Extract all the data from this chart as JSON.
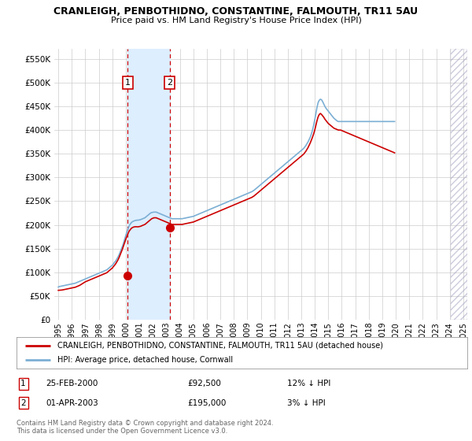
{
  "title": "CRANLEIGH, PENBOTHIDNO, CONSTANTINE, FALMOUTH, TR11 5AU",
  "subtitle": "Price paid vs. HM Land Registry's House Price Index (HPI)",
  "ylabel_ticks": [
    0,
    50000,
    100000,
    150000,
    200000,
    250000,
    300000,
    350000,
    400000,
    450000,
    500000,
    550000
  ],
  "ylim": [
    0,
    572000
  ],
  "xlim_start": 1994.7,
  "xlim_end": 2025.3,
  "transaction1": {
    "date_num": 2000.14,
    "price": 92500,
    "label": "1"
  },
  "transaction2": {
    "date_num": 2003.25,
    "price": 195000,
    "label": "2"
  },
  "legend_line1": "CRANLEIGH, PENBOTHIDNO, CONSTANTINE, FALMOUTH, TR11 5AU (detached house)",
  "legend_line2": "HPI: Average price, detached house, Cornwall",
  "footer1": "Contains HM Land Registry data © Crown copyright and database right 2024.",
  "footer2": "This data is licensed under the Open Government Licence v3.0.",
  "red_color": "#cc0000",
  "blue_color": "#7bafd4",
  "shade_color": "#ddeeff",
  "grid_color": "#cccccc",
  "background_color": "#ffffff",
  "hatch_start": 2024.08,
  "hatch_end": 2025.3,
  "xtick_years": [
    1995,
    1996,
    1997,
    1998,
    1999,
    2000,
    2001,
    2002,
    2003,
    2004,
    2005,
    2006,
    2007,
    2008,
    2009,
    2010,
    2011,
    2012,
    2013,
    2014,
    2015,
    2016,
    2017,
    2018,
    2019,
    2020,
    2021,
    2022,
    2023,
    2024,
    2025
  ],
  "hpi_values_monthly": [
    69000,
    70000,
    70500,
    71000,
    71500,
    72000,
    72500,
    73000,
    73500,
    74000,
    74500,
    75000,
    75500,
    76000,
    76500,
    77000,
    78000,
    79000,
    80000,
    81000,
    82000,
    83000,
    84000,
    85000,
    86000,
    87000,
    88000,
    89000,
    90000,
    91000,
    92000,
    93000,
    94000,
    95000,
    96000,
    97000,
    98000,
    99000,
    100000,
    101000,
    102000,
    103000,
    104000,
    105000,
    107000,
    109000,
    111000,
    113000,
    115000,
    118000,
    121000,
    124000,
    128000,
    132000,
    137000,
    143000,
    149000,
    155000,
    162000,
    170000,
    178000,
    185000,
    192000,
    198000,
    202000,
    205000,
    207000,
    208000,
    209000,
    209500,
    210000,
    210000,
    210500,
    211000,
    212000,
    213000,
    214000,
    215000,
    217000,
    219000,
    221000,
    223000,
    225000,
    226000,
    226500,
    227000,
    227000,
    227000,
    226000,
    225000,
    224000,
    223000,
    222000,
    221000,
    220000,
    219000,
    218000,
    217000,
    216000,
    215000,
    214000,
    213000,
    213000,
    213000,
    213000,
    213000,
    213000,
    213000,
    213000,
    213000,
    213000,
    213500,
    214000,
    214500,
    215000,
    215500,
    216000,
    216500,
    217000,
    217500,
    218000,
    219000,
    220000,
    221000,
    222000,
    223000,
    224000,
    225000,
    226000,
    227000,
    228000,
    229000,
    230000,
    231000,
    232000,
    233000,
    234000,
    235000,
    236000,
    237000,
    238000,
    239000,
    240000,
    241000,
    242000,
    243000,
    244000,
    245000,
    246000,
    247000,
    248000,
    249000,
    250000,
    251000,
    252000,
    253000,
    254000,
    255000,
    256000,
    257000,
    258000,
    259000,
    260000,
    261000,
    262000,
    263000,
    264000,
    265000,
    266000,
    267000,
    268000,
    269000,
    270000,
    271500,
    273000,
    275000,
    277000,
    279000,
    281000,
    283000,
    285000,
    287000,
    289000,
    291000,
    293000,
    295000,
    297000,
    299000,
    301000,
    303000,
    305000,
    307000,
    309000,
    311000,
    313000,
    315000,
    317000,
    319000,
    321000,
    323000,
    325000,
    327000,
    329000,
    331000,
    333000,
    335000,
    337000,
    339000,
    341000,
    343000,
    345000,
    347000,
    349000,
    351000,
    353000,
    355000,
    357000,
    359000,
    361000,
    364000,
    367000,
    371000,
    375000,
    380000,
    385000,
    392000,
    400000,
    410000,
    422000,
    435000,
    448000,
    458000,
    463000,
    465000,
    464000,
    460000,
    455000,
    450000,
    446000,
    443000,
    440000,
    437000,
    434000,
    431000,
    428000,
    425000,
    423000,
    421000,
    419000,
    418000,
    418000,
    418000,
    418000,
    418000,
    418000,
    418000,
    418000,
    418000,
    418000,
    418000,
    418000,
    418000,
    418000,
    418000,
    418000,
    418000,
    418000,
    418000,
    418000,
    418000,
    418000,
    418000,
    418000,
    418000,
    418000,
    418000,
    418000,
    418000,
    418000,
    418000,
    418000,
    418000,
    418000,
    418000,
    418000,
    418000,
    418000,
    418000,
    418000,
    418000,
    418000,
    418000,
    418000,
    418000,
    418000,
    418000,
    418000,
    418000,
    418000,
    418000
  ],
  "prop_values_monthly": [
    62000,
    62200,
    62400,
    62600,
    63000,
    63500,
    64000,
    64500,
    65000,
    65500,
    66000,
    66500,
    67000,
    67500,
    68000,
    68500,
    69500,
    70500,
    71500,
    72500,
    74000,
    75500,
    77000,
    78500,
    80000,
    81000,
    82000,
    83000,
    84000,
    85000,
    86000,
    87000,
    88000,
    89000,
    90000,
    91000,
    92000,
    93000,
    94000,
    95000,
    96000,
    97000,
    98000,
    99000,
    101000,
    103000,
    105000,
    107000,
    109000,
    112000,
    115000,
    118000,
    122000,
    126000,
    131000,
    137000,
    143000,
    149000,
    156000,
    163000,
    170000,
    176000,
    182000,
    187000,
    190000,
    193000,
    194500,
    195500,
    196000,
    196200,
    196000,
    196000,
    196500,
    197000,
    198000,
    199000,
    200000,
    201000,
    203000,
    205000,
    207000,
    209000,
    211000,
    213000,
    214000,
    215000,
    215000,
    215000,
    214000,
    213000,
    212000,
    211000,
    210000,
    209000,
    208000,
    207000,
    206000,
    205000,
    204000,
    203000,
    202000,
    201000,
    201000,
    201000,
    201000,
    201000,
    201000,
    201000,
    201000,
    201000,
    201000,
    201500,
    202000,
    202500,
    203000,
    203500,
    204000,
    204500,
    205000,
    205500,
    206000,
    207000,
    208000,
    209000,
    210000,
    211000,
    212000,
    213000,
    214000,
    215000,
    216000,
    217000,
    218000,
    219000,
    220000,
    221000,
    222000,
    223000,
    224000,
    225000,
    226000,
    227000,
    228000,
    229000,
    230000,
    231000,
    232000,
    233000,
    234000,
    235000,
    236000,
    237000,
    238000,
    239000,
    240000,
    241000,
    242000,
    243000,
    244000,
    245000,
    246000,
    247000,
    248000,
    249000,
    250000,
    251000,
    252000,
    253000,
    254000,
    255000,
    256000,
    257000,
    258000,
    259500,
    261000,
    263000,
    265000,
    267000,
    269000,
    271000,
    273000,
    275000,
    277000,
    279000,
    281000,
    283000,
    285000,
    287000,
    289000,
    291000,
    293000,
    295000,
    297000,
    299000,
    301000,
    303000,
    305000,
    307000,
    309000,
    311000,
    313000,
    315000,
    317000,
    319000,
    321000,
    323000,
    325000,
    327000,
    329000,
    331000,
    333000,
    335000,
    337000,
    339000,
    341000,
    343000,
    345000,
    347000,
    349000,
    352000,
    355000,
    359000,
    363000,
    368000,
    373000,
    379000,
    385000,
    392000,
    400000,
    410000,
    420000,
    428000,
    433000,
    435000,
    433000,
    430000,
    427000,
    423000,
    420000,
    417000,
    414000,
    412000,
    410000,
    408000,
    406000,
    404000,
    403000,
    402000,
    401000,
    400000,
    400000,
    400000,
    399000,
    398000,
    397000,
    396000,
    395000,
    394000,
    393000,
    392000,
    391000,
    390000,
    389000,
    388000,
    387000,
    386000,
    385000,
    384000,
    383000,
    382000,
    381000,
    380000,
    379000,
    378000,
    377000,
    376000,
    375000,
    374000,
    373000,
    372000,
    371000,
    370000,
    369000,
    368000,
    367000,
    366000,
    365000,
    364000,
    363000,
    362000,
    361000,
    360000,
    359000,
    358000,
    357000,
    356000,
    355000,
    354000,
    353000,
    352000
  ]
}
